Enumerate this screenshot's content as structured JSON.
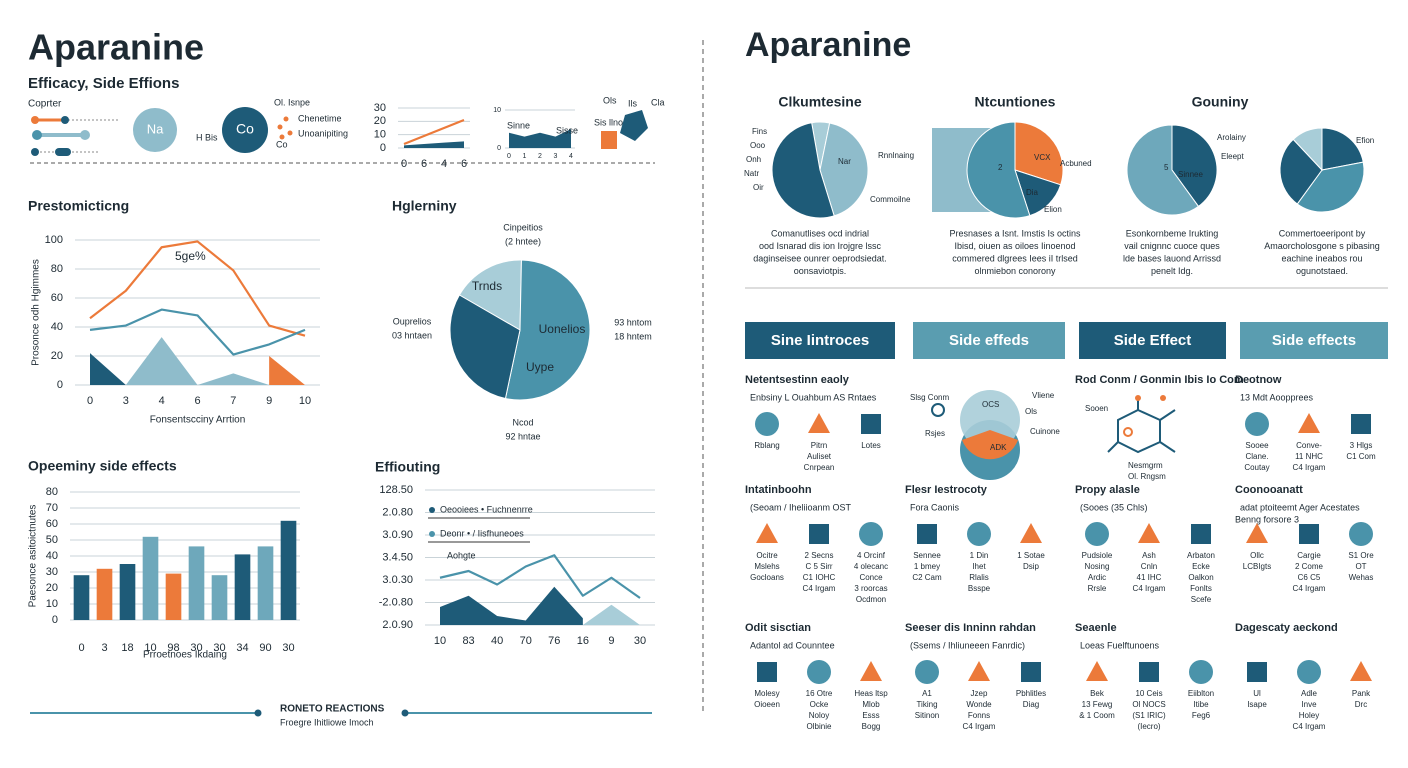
{
  "header": {
    "title": "Aparanine",
    "subtitle": "Efficacy, Side Effions",
    "legend_title": "Coprter",
    "badges": [
      "Na",
      "Co"
    ],
    "badge_note": "H Bis",
    "dot_labels": [
      "Ol. Isnpe",
      "Chenetime",
      "Unoanipiting",
      "Co"
    ],
    "icon_labels": [
      "Ols",
      "Ils",
      "Cla",
      "Sis llno"
    ]
  },
  "mini_charts": [
    {
      "type": "line",
      "categories": [
        "0",
        "6",
        "4",
        "6"
      ],
      "ylim": [
        0,
        30
      ],
      "yticks": [
        0,
        10,
        20,
        30
      ],
      "series": [
        {
          "style": "area",
          "color": "#1e5b78",
          "values": [
            2,
            3,
            4,
            5
          ]
        },
        {
          "style": "line",
          "color": "#ec7a3a",
          "values": [
            3,
            9,
            15,
            21
          ]
        }
      ]
    },
    {
      "type": "line",
      "categories": [
        "0",
        "1",
        "2",
        "3",
        "4"
      ],
      "ylim": [
        0,
        10
      ],
      "yticks": [
        0,
        10
      ],
      "labels": [
        "Sinne",
        "Sisse"
      ],
      "series": [
        {
          "style": "area",
          "color": "#1e5b78",
          "values": [
            4,
            3,
            4,
            3,
            5
          ]
        }
      ]
    }
  ],
  "charts": [
    {
      "type": "line",
      "title": "Prestomicticng",
      "xlabel": "Fonsentscciny Arrtion",
      "ylabel": "Prosonce odh Hgimmes",
      "annotation": "5ge%",
      "categories": [
        "0",
        "3",
        "4",
        "6",
        "7",
        "9",
        "10"
      ],
      "ylim": [
        0,
        100
      ],
      "yticks": [
        0,
        20,
        40,
        60,
        80,
        100
      ],
      "series": [
        {
          "style": "area",
          "color": "#1e5b78",
          "values": [
            22,
            0,
            null,
            null,
            null,
            null,
            null
          ]
        },
        {
          "style": "area",
          "color": "#8fbccb",
          "values": [
            null,
            0,
            33,
            0,
            null,
            null,
            null
          ]
        },
        {
          "style": "area",
          "color": "#8fbccb",
          "values": [
            null,
            null,
            null,
            0,
            8,
            0,
            null
          ]
        },
        {
          "style": "area",
          "color": "#ec7a3a",
          "values": [
            null,
            null,
            null,
            null,
            null,
            20,
            0
          ]
        },
        {
          "style": "line",
          "color": "#ec7a3a",
          "values": [
            46,
            65,
            95,
            99,
            79,
            41,
            34
          ]
        },
        {
          "style": "line",
          "color": "#4a93aa",
          "values": [
            38,
            41,
            52,
            48,
            21,
            28,
            38
          ]
        }
      ]
    },
    {
      "type": "pie",
      "title": "Hglerniny",
      "values": [
        17,
        53,
        30
      ],
      "colors": [
        "#a8cdd8",
        "#4a93aa",
        "#1e5b78"
      ],
      "labels": [
        "Trnds",
        "Uonelios",
        "Uype"
      ],
      "notes": [
        "Cinpeitios",
        "(2 hntee)",
        "Ouprelios",
        "03 hntaen",
        "93 hntom",
        "18 hntem",
        "Ncod",
        "92 hntae"
      ]
    },
    {
      "type": "bar",
      "title": "Opeeminy side effects",
      "xlabel": "Prroetnoes Ikdaing",
      "ylabel": "Paesonce asitoictnutes",
      "categories": [
        "0",
        "3",
        "18",
        "10",
        "98",
        "30",
        "30",
        "34",
        "90",
        "30"
      ],
      "values": [
        28,
        32,
        35,
        52,
        29,
        46,
        28,
        41,
        46,
        62
      ],
      "colors": [
        "#1e5b78",
        "#ec7a3a",
        "#1e5b78",
        "#6ea8bb",
        "#ec7a3a",
        "#6ea8bb",
        "#6ea8bb",
        "#1e5b78",
        "#6ea8bb",
        "#1e5b78"
      ],
      "ylim": [
        0,
        80
      ],
      "yticks": [
        0,
        10,
        20,
        30,
        40,
        50,
        60,
        70,
        80
      ]
    },
    {
      "type": "line",
      "title": "Effiouting",
      "annotation": "Aohgte",
      "legend": "upper left",
      "categories": [
        "10",
        "83",
        "40",
        "70",
        "76",
        "16",
        "9",
        "30"
      ],
      "ylim": [
        0,
        6
      ],
      "yticks": [
        {
          "value": 0,
          "label": "2.0.90"
        },
        {
          "value": 1,
          "label": "-2.0.80"
        },
        {
          "value": 2,
          "label": "3.0.30"
        },
        {
          "value": 3,
          "label": "3.4.50"
        },
        {
          "value": 4,
          "label": "3.0.90"
        },
        {
          "value": 5,
          "label": "2.0.80"
        },
        {
          "value": 6,
          "label": "128.50"
        }
      ],
      "series": [
        {
          "style": "area",
          "name": "Oeooiees • Fuchnenrre",
          "color": "#1e5b78",
          "values": [
            0.8,
            1.3,
            0.4,
            0.2,
            1.7,
            0.3,
            null,
            null
          ]
        },
        {
          "style": "area",
          "color": "#a8cdd8",
          "values": [
            null,
            null,
            null,
            null,
            null,
            0,
            0.9,
            0
          ]
        },
        {
          "style": "line",
          "name": "Deonr • / Iisfhuneoes",
          "color": "#4a93aa",
          "values": [
            2.1,
            2.4,
            1.8,
            2.6,
            3.1,
            1.3,
            2.1,
            1.2
          ]
        }
      ]
    }
  ],
  "footer": {
    "title": "RONETO REACTIONS",
    "subtitle": "Froegre Ihitliowe Imoch"
  },
  "right": {
    "title": "Aparanine",
    "pies": [
      {
        "type": "pie",
        "title": "Clkumtesine",
        "values": [
          6,
          42,
          52
        ],
        "colors": [
          "#a8cdd8",
          "#8fbccb",
          "#1e5b78"
        ],
        "notes": [
          "Fins",
          "Ooo",
          "Onh",
          "Natr",
          "Oir",
          "Nar",
          "Rnnlnaing",
          "Commoilne"
        ],
        "caption": [
          "Comanutlises ocd indrial",
          "ood Isnarad dis ion Irojgre lssc",
          "daginseisee ounrer oeprodsiedat.",
          "oonsaviotpis."
        ]
      },
      {
        "type": "pie",
        "title": "Ntcuntiones",
        "values": [
          30,
          15,
          55
        ],
        "colors": [
          "#ec7a3a",
          "#1e5b78",
          "#4a93aa"
        ],
        "notes": [
          "2",
          "VCX",
          "Dia",
          "Acbuned",
          "Elion"
        ],
        "caption": [
          "Presnases a Isnt. Imstis Is octins",
          "Ibisd, oiuen as oiloes Iinoenod",
          "commered dlgrees Iees iI trlsed",
          "olnmiebon conorony"
        ]
      },
      {
        "type": "pie",
        "title": "Gouniny",
        "values": [
          40,
          60
        ],
        "colors": [
          "#1e5b78",
          "#6ea8bb"
        ],
        "notes": [
          "Arolainy",
          "Eleept",
          "5",
          "Sinnee"
        ],
        "caption": [
          "Esonkornbeme Irukting",
          "vail cnignnc cuoce ques",
          "lde bases lauond Arrissd",
          "penelt Idg."
        ]
      },
      {
        "type": "pie",
        "values": [
          22,
          38,
          28,
          12
        ],
        "colors": [
          "#1e5b78",
          "#4a93aa",
          "#1e5b78",
          "#a8cdd8"
        ],
        "notes": [
          "Efion"
        ],
        "caption": [
          "Commertoeeripont by",
          "Amaorcholosgone s pibasing",
          "eachine ineabos rou",
          "ogunotstaed."
        ]
      }
    ],
    "tabs": [
      "Sine Iintroces",
      "Side effeds",
      "Side Effect",
      "Side effects"
    ],
    "sections": [
      {
        "title": "Netentsestinn eaoly",
        "subtitle": "Enbsiny L Ouahbum AS Rntaes",
        "items": [
          [
            "Rblang"
          ],
          [
            "Pitrn",
            "Auliset",
            "Cnrpean"
          ],
          [
            "Lotes"
          ]
        ]
      },
      {
        "labels": [
          "Slsg Conm",
          "OCS",
          "Vliene",
          "Ols",
          "Cuinone",
          "Rsjes",
          "ADK"
        ]
      },
      {
        "title": "Rod Conm / Gonmin Ibis Io Com",
        "labels": [
          "Sooen",
          "Nesmgrm",
          "Ol. Rngsm"
        ]
      },
      {
        "title": "Deotnow",
        "subtitle": "13 Mdt Aoopprees",
        "items": [
          [
            "Sooee",
            "Clane.",
            "Coutay"
          ],
          [
            "Conve-",
            "11 NHC",
            "C4 Irgam"
          ],
          [
            "3 Hlgs",
            "C1 Com"
          ]
        ]
      },
      {
        "title": "Intatinboohn",
        "subtitle": "(Seoam / Iheliioanm OST",
        "items": [
          [
            "Ocitre",
            "Mslehs",
            "Gocloans"
          ],
          [
            "2 Secns",
            "C 5 Sirr",
            "C1 IOHC",
            "C4 Irgam"
          ],
          [
            "4 Orcinf",
            "4 olecanc",
            "Conce",
            "3 roorcas",
            "Ocdmon"
          ]
        ]
      },
      {
        "title": "Flesr Iestrocoty",
        "subtitle": "Fora Caonis",
        "items": [
          [
            "Sennee",
            "1 bmey",
            "C2 Cam"
          ],
          [
            "1 Din",
            "Ihet",
            "Rlalis",
            "Bsspe"
          ],
          [
            "1 Sotae",
            "Dsip"
          ]
        ]
      },
      {
        "title": "Propy alasle",
        "subtitle": "(Sooes (35 Chls)",
        "items": [
          [
            "Pudsiole",
            "Nosing",
            "Ardic",
            "Rrsle"
          ],
          [
            "Ash",
            "Cnln",
            "41 IHC",
            "C4 Irgam"
          ],
          [
            "Arbaton",
            "Ecke",
            "Oalkon",
            "Fonlts",
            "Scefe"
          ]
        ]
      },
      {
        "title": "Coonooanatt",
        "subtitle": "adat ptoiteemt Ager Acestates",
        "note": "Benng forsore 3",
        "items": [
          [
            "Ollc",
            "LCBIgts"
          ],
          [
            "Cargie",
            "2 Come",
            "C6 C5",
            "C4 Irgam"
          ],
          [
            "S1 Ore",
            "OT",
            "Wehas"
          ]
        ]
      },
      {
        "title": "Odit sisctian",
        "subtitle": "Adantol ad Counntee",
        "items": [
          [
            "Molesy",
            "Oioeen"
          ],
          [
            "16 Otre",
            "Ocke",
            "Noloy",
            "Olbinie"
          ],
          [
            "Heas ltsp",
            "Mlob",
            "Esss",
            "Bogg"
          ]
        ]
      },
      {
        "title": "Seeser dis Inninn rahdan",
        "subtitle": "(Ssems / Ihliuneeen Fanrdic)",
        "items": [
          [
            "A1",
            "Tiking",
            "Sitinon"
          ],
          [
            "Jzep",
            "Wonde",
            "Fonns",
            "C4 Irgam"
          ],
          [
            "Pbhlitles",
            "Diag"
          ]
        ]
      },
      {
        "title": "Seaenle",
        "subtitle": "Loeas Fuelftunoens",
        "items": [
          [
            "Bek",
            "13 Fewg",
            "& 1 Coom"
          ],
          [
            "10 Ceis",
            "Ol NOCS",
            "(S1 IRIC)",
            "(Iecro)"
          ],
          [
            "Eiiblton",
            "Itibe",
            "Feg6"
          ]
        ]
      },
      {
        "title": "Dagescaty aeckond",
        "items": [
          [
            "Ul",
            "Isape"
          ],
          [
            "Adle",
            "Inve",
            "Holey",
            "C4 Irgam"
          ],
          [
            "Pank",
            "Drc"
          ]
        ]
      }
    ]
  }
}
